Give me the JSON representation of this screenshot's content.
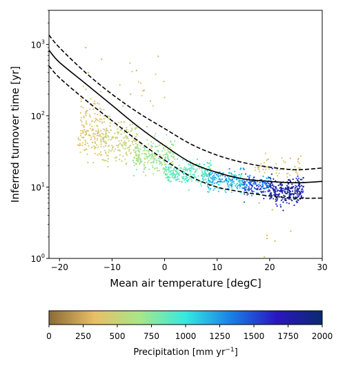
{
  "chart_data": {
    "type": "scatter",
    "xlabel": "Mean air temperature [degC]",
    "ylabel": "Inferred turnover time [yr]",
    "xlim": [
      -22,
      30
    ],
    "ylim": [
      1,
      3000
    ],
    "y_scale": "log",
    "x_ticks": [
      -20,
      -10,
      0,
      10,
      20,
      30
    ],
    "x_tick_labels": [
      "−20",
      "−10",
      "0",
      "10",
      "20",
      "30"
    ],
    "y_ticks": [
      1,
      10,
      100,
      1000
    ],
    "y_tick_labels": [
      "10",
      "10",
      "10",
      "10"
    ],
    "y_tick_exponents": [
      "0",
      "1",
      "2",
      "3"
    ],
    "grid": false,
    "fit_lines": [
      {
        "style": "solid",
        "color": "#000000",
        "x": [
          -22,
          -20,
          -15,
          -10,
          -5,
          0,
          5,
          10,
          15,
          20,
          25,
          30
        ],
        "y": [
          830,
          560,
          280,
          140,
          70,
          38,
          22,
          16,
          13,
          12,
          11.5,
          12
        ]
      },
      {
        "style": "dashed",
        "color": "#000000",
        "x": [
          -22,
          -20,
          -15,
          -10,
          -5,
          0,
          5,
          10,
          15,
          20,
          25,
          30
        ],
        "y": [
          1350,
          900,
          400,
          200,
          110,
          66,
          40,
          28,
          22,
          19,
          17.5,
          18.5
        ]
      },
      {
        "style": "dashed",
        "color": "#000000",
        "x": [
          -22,
          -20,
          -15,
          -10,
          -5,
          0,
          5,
          10,
          15,
          20,
          25,
          30
        ],
        "y": [
          500,
          340,
          165,
          85,
          44,
          24,
          14,
          10,
          8.5,
          7.5,
          7,
          7
        ]
      }
    ],
    "colorbar": {
      "label": "Precipitation [mm yr",
      "label_sup": "−1",
      "label_end": "]",
      "range": [
        0,
        2000
      ],
      "ticks": [
        0,
        250,
        500,
        750,
        1000,
        1250,
        1500,
        1750,
        2000
      ],
      "tick_labels": [
        "0",
        "250",
        "500",
        "750",
        "1000",
        "1250",
        "1500",
        "1750",
        "2000"
      ],
      "colormap": [
        "#8b6a37",
        "#e9bf66",
        "#a8e68a",
        "#35e9e0",
        "#1a7fe6",
        "#2a16c0",
        "#0b2a6e"
      ]
    },
    "scatter_clusters": [
      {
        "x_range": [
          -16.5,
          -11
        ],
        "y_center": 60,
        "y_spread": 0.18,
        "precip_range": [
          280,
          450
        ],
        "count": 160
      },
      {
        "x_range": [
          -12,
          -5
        ],
        "y_center": 42,
        "y_spread": 0.14,
        "precip_range": [
          400,
          620
        ],
        "count": 180
      },
      {
        "x_range": [
          -6,
          2
        ],
        "y_center": 26,
        "y_spread": 0.12,
        "precip_range": [
          550,
          800
        ],
        "count": 220
      },
      {
        "x_range": [
          0,
          9
        ],
        "y_center": 16,
        "y_spread": 0.09,
        "precip_range": [
          700,
          1050
        ],
        "count": 260
      },
      {
        "x_range": [
          8,
          15
        ],
        "y_center": 12.5,
        "y_spread": 0.07,
        "precip_range": [
          900,
          1350
        ],
        "count": 200
      },
      {
        "x_range": [
          15,
          20
        ],
        "y_center": 10.5,
        "y_spread": 0.07,
        "precip_range": [
          1200,
          1700
        ],
        "count": 160
      },
      {
        "x_range": [
          20,
          26.5
        ],
        "y_center": 9,
        "y_spread": 0.09,
        "precip_range": [
          1500,
          2000
        ],
        "count": 260
      },
      {
        "x_range": [
          17,
          26
        ],
        "y_center": 18,
        "y_spread": 0.08,
        "precip_range": [
          250,
          550
        ],
        "count": 55
      },
      {
        "x_range": [
          -16,
          0
        ],
        "y_center": 160,
        "y_spread": 0.25,
        "precip_range": [
          250,
          450
        ],
        "count": 30
      }
    ],
    "scatter_outliers": [
      {
        "x": -15,
        "y": 900,
        "precip": 300
      },
      {
        "x": -12,
        "y": 620,
        "precip": 300
      },
      {
        "x": -8.5,
        "y": 270,
        "precip": 350
      },
      {
        "x": -14.5,
        "y": 400,
        "precip": 300
      },
      {
        "x": 0,
        "y": 180,
        "precip": 400
      },
      {
        "x": 19.5,
        "y": 2.1,
        "precip": 300
      },
      {
        "x": 19.5,
        "y": 1.9,
        "precip": 300
      },
      {
        "x": 19,
        "y": 1.05,
        "precip": 300
      },
      {
        "x": 21,
        "y": 1.75,
        "precip": 300
      },
      {
        "x": 24,
        "y": 2.4,
        "precip": 300
      },
      {
        "x": 20.5,
        "y": 4.8,
        "precip": 300
      },
      {
        "x": 18,
        "y": 6,
        "precip": 300
      },
      {
        "x": 25.5,
        "y": 25,
        "precip": 300
      }
    ]
  }
}
